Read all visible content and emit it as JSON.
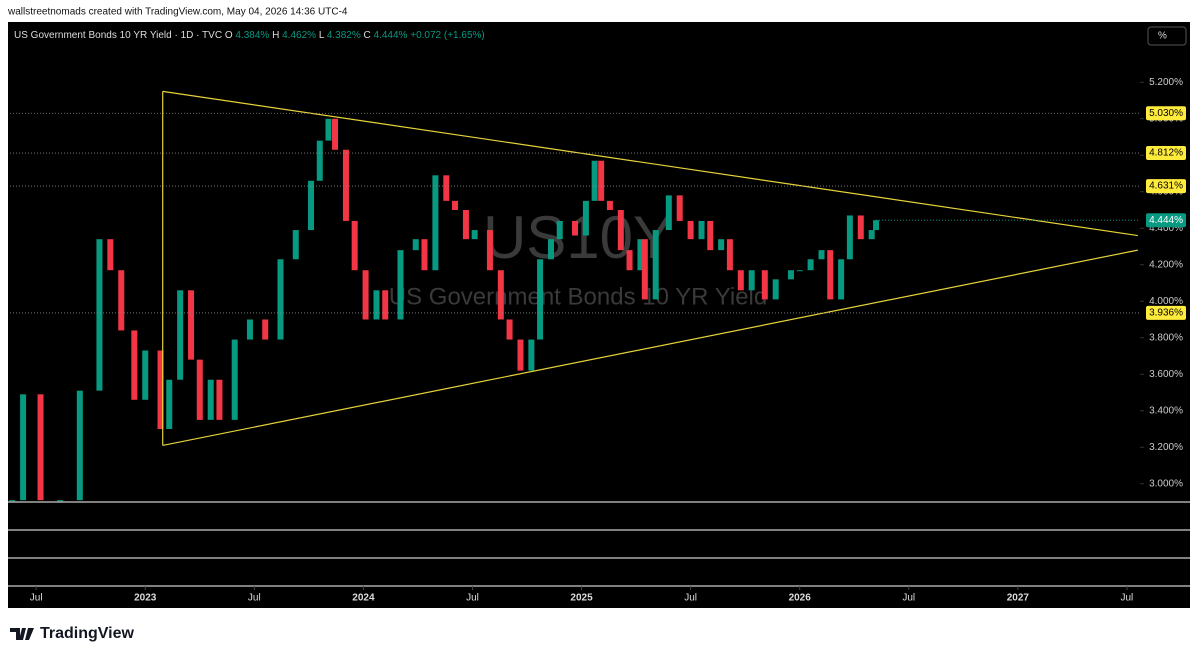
{
  "credit": "wallstreetnomads created with TradingView.com, May 04, 2026 14:36 UTC-4",
  "brand": "TradingView",
  "chart_data": {
    "type": "candlestick",
    "title": "US Government Bonds 10 YR Yield · 1D · TVC",
    "ohlc": [
      {
        "label": "O",
        "value": "4.384%"
      },
      {
        "label": "H",
        "value": "4.462%"
      },
      {
        "label": "L",
        "value": "4.382%"
      },
      {
        "label": "C",
        "value": "4.444%"
      }
    ],
    "change": "+0.072 (+1.65%)",
    "unit_button": "%",
    "watermark": "US10Y",
    "watermark_subtitle": "US Government Bonds 10 YR Yield",
    "up_color": "#089981",
    "down_color": "#f23645",
    "x": [
      2022.39,
      2022.44,
      2022.52,
      2022.61,
      2022.7,
      2022.79,
      2022.84,
      2022.89,
      2022.95,
      2023.0,
      2023.07,
      2023.11,
      2023.16,
      2023.21,
      2023.25,
      2023.3,
      2023.34,
      2023.41,
      2023.48,
      2023.55,
      2023.62,
      2023.69,
      2023.76,
      2023.8,
      2023.84,
      2023.87,
      2023.92,
      2023.96,
      2024.01,
      2024.06,
      2024.1,
      2024.17,
      2024.24,
      2024.28,
      2024.33,
      2024.38,
      2024.42,
      2024.47,
      2024.51,
      2024.58,
      2024.63,
      2024.67,
      2024.72,
      2024.77,
      2024.81,
      2024.86,
      2024.9,
      2024.97,
      2025.02,
      2025.06,
      2025.09,
      2025.13,
      2025.18,
      2025.22,
      2025.27,
      2025.29,
      2025.34,
      2025.4,
      2025.45,
      2025.5,
      2025.55,
      2025.59,
      2025.64,
      2025.68,
      2025.73,
      2025.78,
      2025.84,
      2025.89,
      2025.96,
      2026.0,
      2026.05,
      2026.1,
      2026.14,
      2026.19,
      2026.23,
      2026.28,
      2026.33,
      2026.35
    ],
    "values": [
      2.91,
      3.49,
      2.91,
      2.91,
      3.51,
      4.34,
      4.17,
      3.84,
      3.46,
      3.73,
      3.3,
      3.57,
      4.06,
      3.68,
      3.35,
      3.57,
      3.35,
      3.79,
      3.9,
      3.79,
      4.23,
      4.39,
      4.66,
      4.88,
      5.0,
      4.83,
      4.44,
      4.17,
      3.9,
      4.06,
      3.9,
      4.28,
      4.34,
      4.17,
      4.69,
      4.55,
      4.5,
      4.34,
      4.39,
      4.17,
      3.9,
      3.79,
      3.62,
      3.79,
      4.23,
      4.34,
      4.44,
      4.36,
      4.55,
      4.77,
      4.55,
      4.5,
      4.28,
      4.17,
      4.34,
      4.01,
      4.39,
      4.58,
      4.44,
      4.34,
      4.44,
      4.28,
      4.34,
      4.17,
      4.06,
      4.17,
      4.01,
      4.12,
      4.17,
      4.17,
      4.23,
      4.28,
      4.01,
      4.23,
      4.47,
      4.34,
      4.39,
      4.444
    ],
    "xlim": [
      2022.38,
      2027.56
    ],
    "xticks": [
      {
        "value": 2022.5,
        "label": "Jul"
      },
      2023,
      {
        "value": 2023.5,
        "label": "Jul"
      },
      2024,
      {
        "value": 2024.5,
        "label": "Jul"
      },
      2025,
      {
        "value": 2025.5,
        "label": "Jul"
      },
      2026,
      {
        "value": 2026.5,
        "label": "Jul"
      },
      2027,
      {
        "value": 2027.5,
        "label": "Jul"
      }
    ],
    "ylim": [
      2.9,
      5.53
    ],
    "yticks": [
      {
        "value": 3.0,
        "label": "3.000%"
      },
      {
        "value": 3.2,
        "label": "3.200%"
      },
      {
        "value": 3.4,
        "label": "3.400%"
      },
      {
        "value": 3.6,
        "label": "3.600%"
      },
      {
        "value": 3.8,
        "label": "3.800%"
      },
      {
        "value": 4.0,
        "label": "4.000%"
      },
      {
        "value": 4.2,
        "label": "4.200%"
      },
      {
        "value": 4.4,
        "label": "4.400%"
      },
      {
        "value": 4.6,
        "label": "4.600%"
      },
      {
        "value": 4.8,
        "label": "4.800%"
      },
      {
        "value": 5.0,
        "label": "5.000%"
      },
      {
        "value": 5.2,
        "label": "5.200%"
      }
    ],
    "levels": [
      {
        "value": 5.03,
        "label": "5.030%"
      },
      {
        "value": 4.812,
        "label": "4.812%"
      },
      {
        "value": 4.631,
        "label": "4.631%"
      },
      {
        "value": 3.936,
        "label": "3.936%"
      }
    ],
    "level_color": "#ffeb3b",
    "last_price": {
      "value": 4.444,
      "label": "4.444%"
    },
    "trendlines": [
      {
        "x": [
          2023.08,
          2027.55
        ],
        "y": [
          5.15,
          4.36
        ]
      },
      {
        "x": [
          2023.08,
          2027.55
        ],
        "y": [
          3.21,
          4.28
        ]
      },
      {
        "x": [
          2023.08,
          2023.08
        ],
        "y": [
          5.15,
          3.21
        ]
      }
    ],
    "trendline_color": "#e6d23a"
  }
}
